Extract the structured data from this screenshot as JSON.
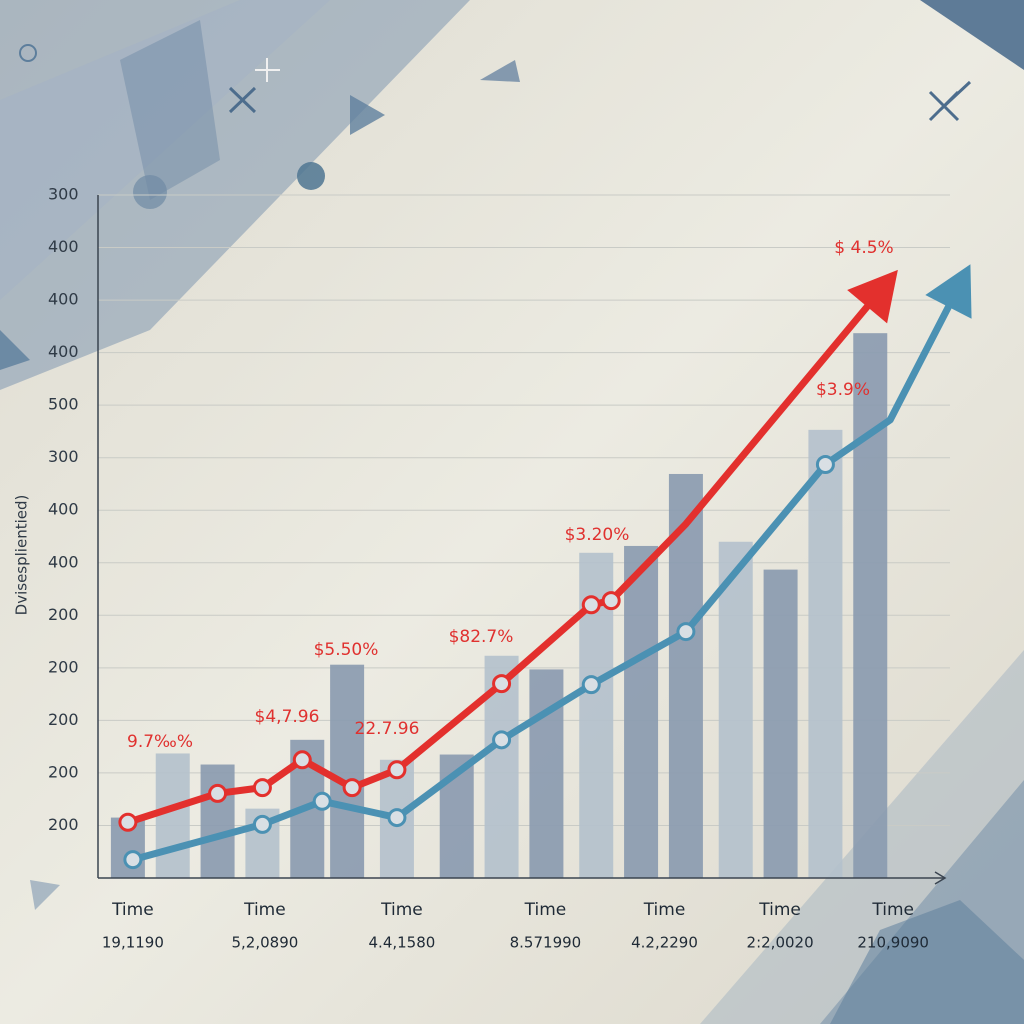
{
  "chart_data": {
    "type": "bar",
    "y_label": "Dvisesplientied)",
    "grid": true,
    "xlim": [
      0,
      17
    ],
    "ylim": [
      -1,
      12
    ],
    "yticks": [
      {
        "value": 0,
        "label": "200"
      },
      {
        "value": 1,
        "label": "200"
      },
      {
        "value": 2,
        "label": "200"
      },
      {
        "value": 3,
        "label": "200"
      },
      {
        "value": 4,
        "label": "200"
      },
      {
        "value": 5,
        "label": "400"
      },
      {
        "value": 6,
        "label": "400"
      },
      {
        "value": 7,
        "label": "300"
      },
      {
        "value": 8,
        "label": "500"
      },
      {
        "value": 9,
        "label": "400"
      },
      {
        "value": 10,
        "label": "400"
      },
      {
        "value": 11,
        "label": "400"
      },
      {
        "value": 12,
        "label": "300"
      }
    ],
    "xticks": [
      {
        "value": 0.7,
        "label": "Time"
      },
      {
        "value": 3.35,
        "label": "Time"
      },
      {
        "value": 6.1,
        "label": "Time"
      },
      {
        "value": 8.98,
        "label": "Time"
      },
      {
        "value": 11.37,
        "label": "Time"
      },
      {
        "value": 13.69,
        "label": "Time"
      },
      {
        "value": 15.96,
        "label": "Time"
      }
    ],
    "xtick_sublabels": [
      "19,1190",
      "5,2,0890",
      "4.4,1580",
      "8.571990",
      "4.2,2290",
      "2:2,0020",
      "210,9090"
    ],
    "bars": {
      "x": [
        0.6,
        1.5,
        2.4,
        3.3,
        4.2,
        5.0,
        6.0,
        7.2,
        8.1,
        9.0,
        10.0,
        10.9,
        11.8,
        12.8,
        13.7,
        14.6,
        15.5
      ],
      "values": [
        0.15,
        1.37,
        1.16,
        0.32,
        1.63,
        3.06,
        1.25,
        1.35,
        3.23,
        2.97,
        5.19,
        5.32,
        6.69,
        5.4,
        4.87,
        7.53,
        9.37
      ],
      "colors": [
        "#8b9bb0",
        "#b4c1cc",
        "#8b9bb0",
        "#b4c1cc",
        "#8b9bb0",
        "#8b9bb0",
        "#b4c1cc",
        "#8b9bb0",
        "#b4c1cc",
        "#8b9bb0",
        "#b4c1cc",
        "#8b9bb0",
        "#8b9bb0",
        "#b4c1cc",
        "#8b9bb0",
        "#b4c1cc",
        "#8b9bb0"
      ]
    },
    "series": [
      {
        "color": "#e3302d",
        "x": [
          0.6,
          2.4,
          3.3,
          4.1,
          5.1,
          6.0,
          8.1,
          9.9,
          10.3,
          11.8,
          15.9
        ],
        "values": [
          0.06,
          0.61,
          0.72,
          1.25,
          0.72,
          1.06,
          2.7,
          4.2,
          4.28,
          5.74,
          10.4
        ]
      },
      {
        "color": "#4b91b3",
        "x": [
          0.7,
          3.3,
          4.5,
          6.0,
          8.1,
          9.9,
          11.8,
          14.6,
          15.9,
          17.4
        ],
        "values": [
          -0.65,
          0.02,
          0.46,
          0.15,
          1.63,
          2.68,
          3.69,
          6.87,
          7.72,
          10.48
        ]
      }
    ],
    "annotations": [
      "9.7‰%",
      "$4,7.96",
      "$5.50%",
      "22.7.96",
      "$82.7%",
      "$3.20%",
      "$3.9%",
      "$ 4.5%"
    ]
  }
}
